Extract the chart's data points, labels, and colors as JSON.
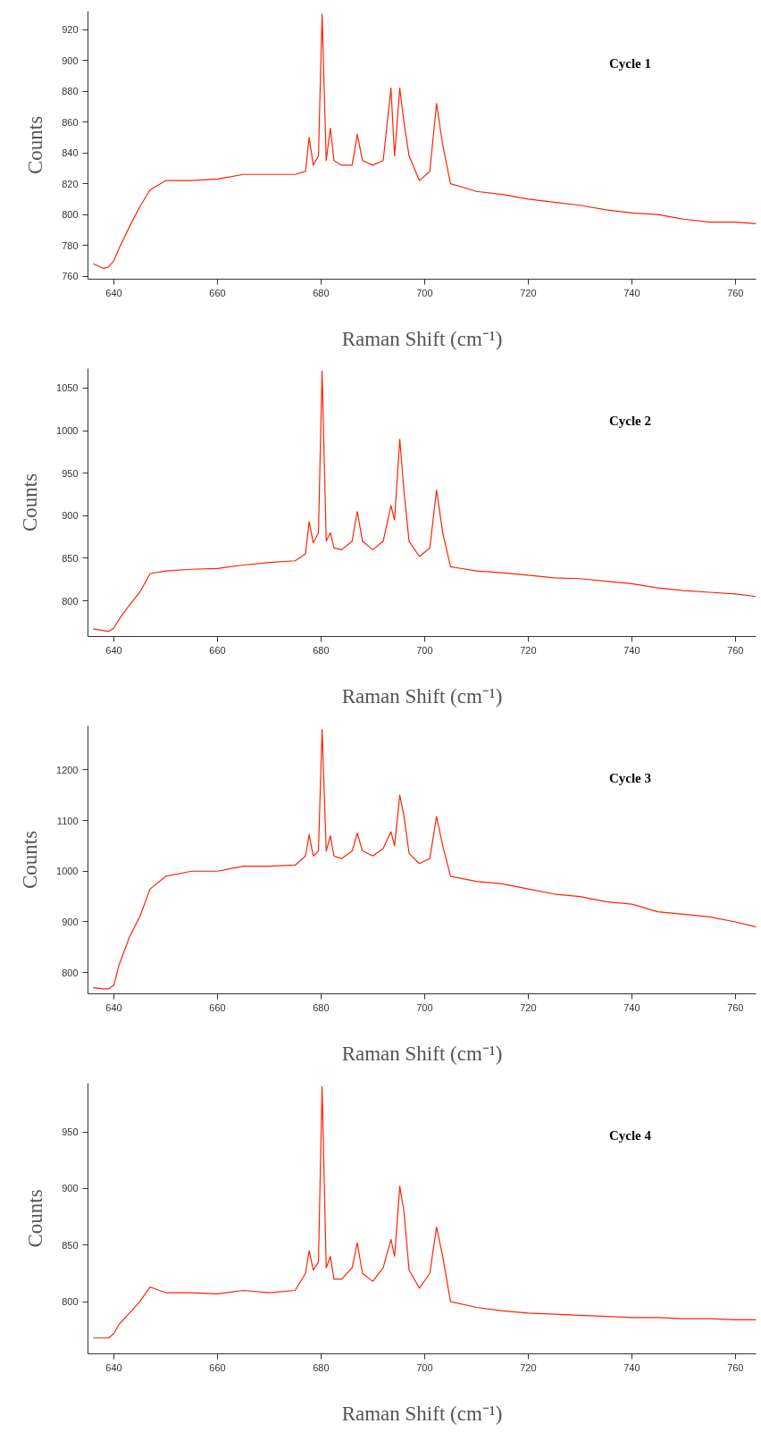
{
  "chart_data": [
    {
      "type": "line",
      "xlabel": "Raman Shift (cm⁻¹)",
      "ylabel": "Counts",
      "annotations": [
        "Cycle 1"
      ],
      "xlim": [
        635,
        764
      ],
      "ylim": [
        758,
        932
      ],
      "xticks": [
        640,
        660,
        680,
        700,
        720,
        740,
        760
      ],
      "yticks": [
        760,
        780,
        800,
        820,
        840,
        860,
        880,
        900,
        920
      ],
      "grid": false,
      "marker": "none",
      "line_style": "solid",
      "x": [
        636,
        638,
        639,
        640,
        641,
        643,
        645,
        647,
        650,
        655,
        660,
        665,
        670,
        675,
        677,
        677.7,
        678.5,
        679.5,
        680.2,
        681,
        681.8,
        682.5,
        684,
        686,
        687,
        688,
        690,
        692,
        693.5,
        694.2,
        695.2,
        696,
        697,
        699,
        701,
        702.3,
        703.5,
        705,
        710,
        715,
        720,
        725,
        730,
        735,
        740,
        745,
        750,
        755,
        760,
        764
      ],
      "series": [
        {
          "color": "#ff2200",
          "values": [
            768,
            765,
            766,
            770,
            778,
            792,
            805,
            816,
            822,
            822,
            823,
            826,
            826,
            826,
            828,
            850,
            832,
            838,
            930,
            835,
            856,
            835,
            832,
            832,
            852,
            835,
            832,
            835,
            882,
            838,
            882,
            860,
            838,
            822,
            828,
            872,
            845,
            820,
            815,
            813,
            810,
            808,
            806,
            803,
            801,
            800,
            797,
            795,
            795,
            794
          ]
        }
      ]
    },
    {
      "type": "line",
      "xlabel": "Raman Shift (cm⁻¹)",
      "ylabel": "Counts",
      "annotations": [
        "Cycle 2"
      ],
      "xlim": [
        635,
        764
      ],
      "ylim": [
        758,
        1073
      ],
      "xticks": [
        640,
        660,
        680,
        700,
        720,
        740,
        760
      ],
      "yticks": [
        800,
        850,
        900,
        950,
        1000,
        1050
      ],
      "grid": false,
      "marker": "none",
      "line_style": "solid",
      "x": [
        636,
        638,
        639,
        640,
        641,
        643,
        645,
        647,
        650,
        655,
        660,
        665,
        670,
        675,
        677,
        677.7,
        678.5,
        679.5,
        680.2,
        681,
        681.8,
        682.5,
        684,
        686,
        687,
        688,
        690,
        692,
        693.5,
        694.2,
        695.2,
        696,
        697,
        699,
        701,
        702.3,
        703.5,
        705,
        710,
        715,
        720,
        725,
        730,
        735,
        740,
        745,
        750,
        755,
        760,
        764
      ],
      "series": [
        {
          "color": "#ff2200",
          "values": [
            767,
            765,
            764,
            768,
            778,
            795,
            810,
            832,
            835,
            837,
            838,
            842,
            845,
            847,
            855,
            893,
            868,
            880,
            1070,
            870,
            880,
            862,
            860,
            870,
            905,
            870,
            860,
            870,
            912,
            895,
            990,
            930,
            870,
            852,
            862,
            930,
            880,
            840,
            835,
            833,
            830,
            827,
            826,
            823,
            820,
            815,
            812,
            810,
            808,
            805
          ]
        }
      ]
    },
    {
      "type": "line",
      "xlabel": "Raman Shift (cm⁻¹)",
      "ylabel": "Counts",
      "annotations": [
        "Cycle 3"
      ],
      "xlim": [
        635,
        764
      ],
      "ylim": [
        758,
        1287
      ],
      "xticks": [
        640,
        660,
        680,
        700,
        720,
        740,
        760
      ],
      "yticks": [
        800,
        900,
        1000,
        1100,
        1200
      ],
      "grid": false,
      "marker": "none",
      "line_style": "solid",
      "x": [
        636,
        638,
        639,
        640,
        641,
        643,
        645,
        647,
        650,
        655,
        660,
        665,
        670,
        675,
        677,
        677.7,
        678.5,
        679.5,
        680.2,
        681,
        681.8,
        682.5,
        684,
        686,
        687,
        688,
        690,
        692,
        693.5,
        694.2,
        695.2,
        696,
        697,
        699,
        701,
        702.3,
        703.5,
        705,
        710,
        715,
        720,
        725,
        730,
        735,
        740,
        745,
        750,
        755,
        760,
        764
      ],
      "series": [
        {
          "color": "#ff2200",
          "values": [
            770,
            768,
            768,
            775,
            815,
            870,
            910,
            965,
            990,
            1000,
            1000,
            1010,
            1010,
            1012,
            1030,
            1072,
            1030,
            1040,
            1280,
            1040,
            1070,
            1030,
            1025,
            1040,
            1075,
            1040,
            1030,
            1045,
            1078,
            1050,
            1150,
            1110,
            1035,
            1015,
            1025,
            1108,
            1050,
            990,
            980,
            975,
            965,
            955,
            950,
            940,
            935,
            920,
            915,
            910,
            900,
            890
          ]
        }
      ]
    },
    {
      "type": "line",
      "xlabel": "Raman Shift (cm⁻¹)",
      "ylabel": "Counts",
      "annotations": [
        "Cycle 4"
      ],
      "xlim": [
        635,
        764
      ],
      "ylim": [
        754,
        993
      ],
      "xticks": [
        640,
        660,
        680,
        700,
        720,
        740,
        760
      ],
      "yticks": [
        800,
        850,
        900,
        950
      ],
      "grid": false,
      "marker": "none",
      "line_style": "solid",
      "x": [
        636,
        638,
        639,
        640,
        641,
        643,
        645,
        647,
        650,
        655,
        660,
        665,
        670,
        675,
        677,
        677.7,
        678.5,
        679.5,
        680.2,
        681,
        681.8,
        682.5,
        684,
        686,
        687,
        688,
        690,
        692,
        693.5,
        694.2,
        695.2,
        696,
        697,
        699,
        701,
        702.3,
        703.5,
        705,
        710,
        715,
        720,
        725,
        730,
        735,
        740,
        745,
        750,
        755,
        760,
        764
      ],
      "series": [
        {
          "color": "#ff2200",
          "values": [
            768,
            768,
            768,
            772,
            780,
            790,
            800,
            813,
            808,
            808,
            807,
            810,
            808,
            810,
            825,
            845,
            828,
            835,
            990,
            830,
            840,
            820,
            820,
            830,
            852,
            825,
            818,
            830,
            855,
            840,
            902,
            880,
            828,
            812,
            825,
            866,
            840,
            800,
            795,
            792,
            790,
            789,
            788,
            787,
            786,
            786,
            785,
            785,
            784,
            784
          ]
        }
      ]
    }
  ]
}
